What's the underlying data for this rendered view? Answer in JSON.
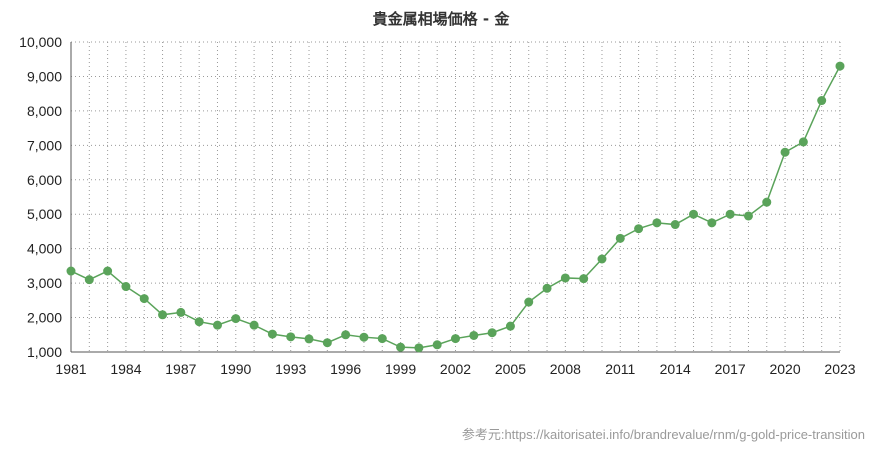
{
  "chart_data": {
    "type": "line",
    "title": "貴金属相場価格 - 金",
    "xlabel": "",
    "ylabel": "",
    "x": [
      1981,
      1982,
      1983,
      1984,
      1985,
      1986,
      1987,
      1988,
      1989,
      1990,
      1991,
      1992,
      1993,
      1994,
      1995,
      1996,
      1997,
      1998,
      1999,
      2000,
      2001,
      2002,
      2003,
      2004,
      2005,
      2006,
      2007,
      2008,
      2009,
      2010,
      2011,
      2012,
      2013,
      2014,
      2015,
      2016,
      2017,
      2018,
      2019,
      2020,
      2021,
      2022,
      2023
    ],
    "series": [
      {
        "values": [
          3350,
          3100,
          3350,
          2900,
          2550,
          2080,
          2150,
          1880,
          1780,
          1970,
          1780,
          1520,
          1440,
          1380,
          1270,
          1500,
          1430,
          1390,
          1140,
          1120,
          1210,
          1390,
          1480,
          1560,
          1750,
          2450,
          2850,
          3150,
          3130,
          3700,
          4300,
          4580,
          4750,
          4700,
          5000,
          4750,
          5000,
          4950,
          5350,
          6800,
          7100,
          8300,
          9300
        ],
        "color": "#5aa35a"
      }
    ],
    "xlim": [
      1981,
      2023
    ],
    "ylim": [
      1000,
      10000
    ],
    "x_ticks": [
      "1981",
      "1984",
      "1987",
      "1990",
      "1993",
      "1996",
      "1999",
      "2002",
      "2005",
      "2008",
      "2011",
      "2014",
      "2017",
      "2020",
      "2023"
    ],
    "y_ticks": [
      "1,000",
      "2,000",
      "3,000",
      "4,000",
      "5,000",
      "6,000",
      "7,000",
      "8,000",
      "9,000",
      "10,000"
    ],
    "grid": true,
    "legend": "none"
  },
  "credit": "参考元:https://kaitorisatei.info/brandrevalue/rnm/g-gold-price-transition"
}
